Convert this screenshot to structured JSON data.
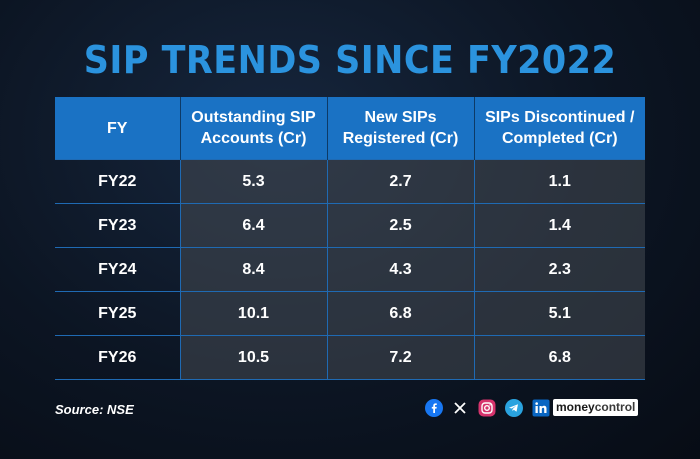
{
  "title": "SIP TRENDS SINCE FY2022",
  "table": {
    "headers": [
      "FY",
      "Outstanding SIP Accounts (Cr)",
      "New SIPs Registered (Cr)",
      "SIPs Discontinued / Completed (Cr)"
    ],
    "header_lines": [
      [
        "FY"
      ],
      [
        "Outstanding SIP",
        "Accounts (Cr)"
      ],
      [
        "New SIPs",
        "Registered (Cr)"
      ],
      [
        "SIPs Discontinued /",
        "Completed (Cr)"
      ]
    ],
    "rows": [
      [
        "FY22",
        "5.3",
        "2.7",
        "1.1"
      ],
      [
        "FY23",
        "6.4",
        "2.5",
        "1.4"
      ],
      [
        "FY24",
        "8.4",
        "4.3",
        "2.3"
      ],
      [
        "FY25",
        "10.1",
        "6.8",
        "5.1"
      ],
      [
        "FY26",
        "10.5",
        "7.2",
        "6.8"
      ]
    ]
  },
  "chart_data": {
    "type": "table",
    "title": "SIP TRENDS SINCE FY2022",
    "categories": [
      "FY22",
      "FY23",
      "FY24",
      "FY25",
      "FY26"
    ],
    "series": [
      {
        "name": "Outstanding SIP Accounts (Cr)",
        "values": [
          5.3,
          6.4,
          8.4,
          10.1,
          10.5
        ]
      },
      {
        "name": "New SIPs Registered (Cr)",
        "values": [
          2.7,
          2.5,
          4.3,
          6.8,
          7.2
        ]
      },
      {
        "name": "SIPs Discontinued / Completed (Cr)",
        "values": [
          1.1,
          1.4,
          2.3,
          5.1,
          6.8
        ]
      }
    ]
  },
  "footer": {
    "source": "Source: NSE",
    "brand": {
      "part1": "money",
      "part2": "control"
    },
    "social_icons": [
      "facebook-icon",
      "x-icon",
      "instagram-icon",
      "telegram-icon",
      "linkedin-icon"
    ]
  },
  "colors": {
    "title": "#2b93de",
    "header_bg": "#1a72c4",
    "facebook": "#1877f2",
    "instagram": "#d6336c",
    "telegram": "#2aa3df",
    "linkedin": "#0a66c2"
  }
}
